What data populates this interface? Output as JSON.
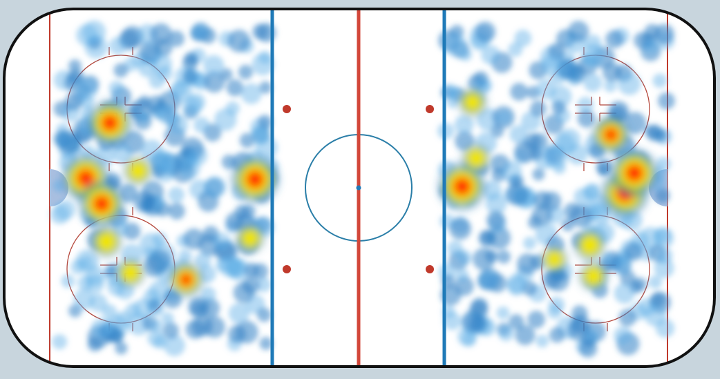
{
  "chart_data": {
    "type": "heatmap",
    "title": "",
    "xlabel": "",
    "ylabel": "",
    "xlim": [
      -100,
      100
    ],
    "ylim": [
      -42.5,
      42.5
    ],
    "units": "ft",
    "grid": false,
    "legend": "none",
    "colormap": [
      "#5fb0e6",
      "#2f7fc4",
      "#9ccc3c",
      "#f2e500",
      "#ff9a00",
      "#ff1a00"
    ],
    "rink": {
      "board_color": "#111111",
      "goal_line_color": "#c0392b",
      "center_line_color": "#d2473a",
      "blue_line_color": "#1f7ab8",
      "circle_color": "#2a7ea8",
      "faceoff_circle_color": "#b5483c",
      "crease_color": "#a9bfe0"
    },
    "hotspots": [
      {
        "x": -69.9,
        "y": 15.4,
        "intensity": 0.95
      },
      {
        "x": -76.7,
        "y": 2.3,
        "intensity": 1.0
      },
      {
        "x": -72.2,
        "y": -3.8,
        "intensity": 0.95
      },
      {
        "x": -29.1,
        "y": 2.0,
        "intensity": 1.0
      },
      {
        "x": -48.5,
        "y": -21.8,
        "intensity": 0.75
      },
      {
        "x": -64.1,
        "y": -20.2,
        "intensity": 0.6
      },
      {
        "x": -70.9,
        "y": -12.8,
        "intensity": 0.65
      },
      {
        "x": -62.0,
        "y": 4.0,
        "intensity": 0.6
      },
      {
        "x": -30.5,
        "y": -12.0,
        "intensity": 0.6
      },
      {
        "x": 29.1,
        "y": 0.3,
        "intensity": 1.0
      },
      {
        "x": 74.8,
        "y": -1.3,
        "intensity": 1.0
      },
      {
        "x": 77.5,
        "y": 3.5,
        "intensity": 1.0
      },
      {
        "x": 70.9,
        "y": 12.6,
        "intensity": 0.8
      },
      {
        "x": 32.0,
        "y": 20.3,
        "intensity": 0.6
      },
      {
        "x": 65.0,
        "y": -13.6,
        "intensity": 0.65
      },
      {
        "x": 66.0,
        "y": -21.0,
        "intensity": 0.6
      },
      {
        "x": 33.0,
        "y": 7.0,
        "intensity": 0.6
      },
      {
        "x": 55.0,
        "y": -17.0,
        "intensity": 0.55
      }
    ]
  }
}
